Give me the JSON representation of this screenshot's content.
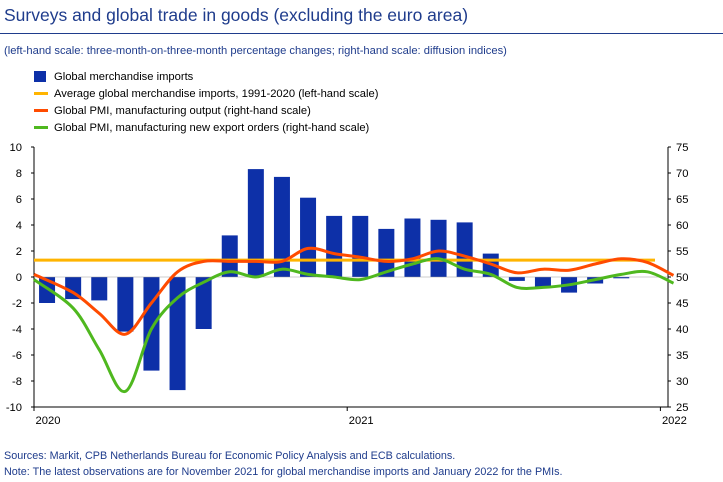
{
  "title": "Surveys and global trade in goods (excluding the euro area)",
  "subtitle": "(left-hand scale: three-month-on-three-month percentage changes; right-hand scale: diffusion indices)",
  "footer": {
    "sources": "Sources: Markit, CPB Netherlands Bureau for Economic Policy Analysis and ECB calculations.",
    "note": "Note: The latest observations are for November 2021 for global merchandise imports and January 2022 for the PMIs."
  },
  "colors": {
    "imports_bar": "#0d30a8",
    "average_line": "#ffb400",
    "pmi_output": "#ff4b00",
    "pmi_export": "#4fb81f",
    "title": "#1f3c8c"
  },
  "chart_data": {
    "type": "bar+line",
    "x_labels": [
      "2020",
      "2021",
      "2022"
    ],
    "left_axis": {
      "ylim": [
        -10,
        10
      ],
      "ticks": [
        "10",
        "8",
        "6",
        "4",
        "2",
        "0",
        "-2",
        "-4",
        "-6",
        "-8",
        "-10"
      ]
    },
    "right_axis": {
      "ylim": [
        25,
        75
      ],
      "ticks": [
        "75",
        "70",
        "65",
        "60",
        "55",
        "50",
        "45",
        "40",
        "35",
        "30",
        "25"
      ]
    },
    "months": [
      "2020-01",
      "2020-02",
      "2020-03",
      "2020-04",
      "2020-05",
      "2020-06",
      "2020-07",
      "2020-08",
      "2020-09",
      "2020-10",
      "2020-11",
      "2020-12",
      "2021-01",
      "2021-02",
      "2021-03",
      "2021-04",
      "2021-05",
      "2021-06",
      "2021-07",
      "2021-08",
      "2021-09",
      "2021-10",
      "2021-11",
      "2021-12",
      "2022-01"
    ],
    "series": [
      {
        "name": "Global merchandise imports",
        "kind": "bar",
        "axis": "left",
        "values": [
          -2.0,
          -1.7,
          -1.8,
          -4.2,
          -7.2,
          -8.7,
          -4.0,
          3.2,
          8.3,
          7.7,
          6.1,
          4.7,
          4.7,
          3.7,
          4.5,
          4.4,
          4.2,
          1.8,
          -0.3,
          -0.8,
          -1.2,
          -0.5,
          -0.1,
          null,
          null
        ]
      },
      {
        "name": "Average global merchandise imports, 1991-2020",
        "kind": "line",
        "axis": "left",
        "constant": 1.3
      },
      {
        "name": "Global PMI, manufacturing output",
        "kind": "line",
        "axis": "right",
        "values": [
          50.5,
          47.0,
          43.0,
          39.0,
          45.0,
          51.0,
          53.0,
          53.0,
          53.0,
          53.0,
          55.5,
          54.5,
          53.8,
          53.0,
          53.5,
          55.0,
          54.0,
          52.5,
          50.8,
          51.5,
          51.3,
          52.5,
          53.5,
          52.8,
          50.3
        ]
      },
      {
        "name": "Global PMI, manufacturing new export orders (right-hand scale)",
        "kind": "line",
        "axis": "right",
        "values": [
          49.5,
          44.0,
          36.0,
          28.0,
          40.0,
          46.0,
          49.0,
          51.0,
          50.0,
          51.5,
          50.5,
          50.0,
          49.5,
          51.0,
          52.5,
          53.5,
          51.5,
          50.5,
          48.0,
          48.0,
          48.5,
          49.5,
          50.5,
          51.0,
          48.8
        ]
      }
    ],
    "legend_labels": [
      "Global merchandise imports",
      "Average global merchandise imports, 1991-2020 (left-hand scale)",
      "Global PMI, manufacturing output (right-hand scale)",
      "Global PMI, manufacturing new export orders (right-hand scale)"
    ],
    "grid": false,
    "legend_position": "top-left"
  }
}
